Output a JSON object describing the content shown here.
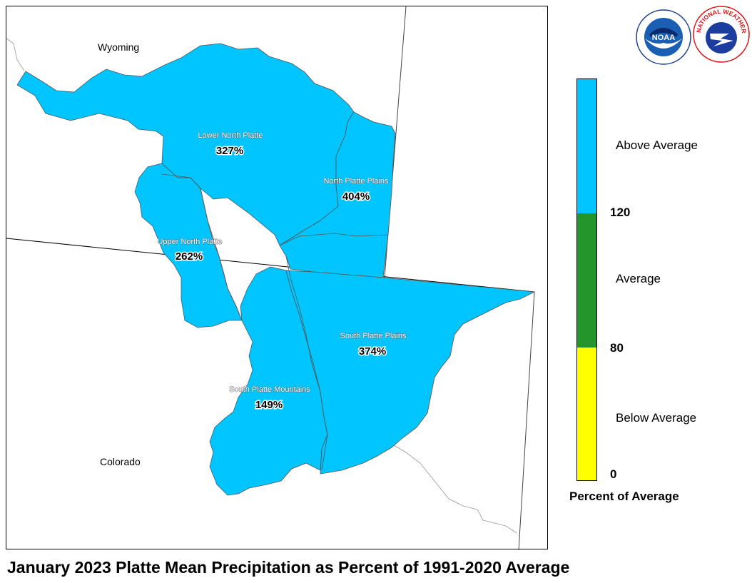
{
  "title": "January 2023 Platte Mean Precipitation as Percent of 1991-2020 Average",
  "map": {
    "states": [
      {
        "name": "Wyoming"
      },
      {
        "name": "Colorado"
      }
    ],
    "basins": [
      {
        "name": "Lower North Platte",
        "value": "327%",
        "category": "Above Average"
      },
      {
        "name": "North Platte Plains",
        "value": "404%",
        "category": "Above Average"
      },
      {
        "name": "Upper North Platte",
        "value": "262%",
        "category": "Above Average"
      },
      {
        "name": "South Platte Plains",
        "value": "374%",
        "category": "Above Average"
      },
      {
        "name": "South Platte Mountains",
        "value": "149%",
        "category": "Above Average"
      }
    ]
  },
  "legend": {
    "title": "Percent of Average",
    "categories": [
      {
        "label": "Above Average",
        "color": "#00c5ff"
      },
      {
        "label": "Average",
        "color": "#24952a"
      },
      {
        "label": "Below Average",
        "color": "#ffff00"
      }
    ],
    "ticks": [
      "120",
      "80",
      "0"
    ]
  },
  "logos": [
    {
      "name": "NOAA",
      "text": "NOAA"
    },
    {
      "name": "National Weather Service",
      "text": "NATIONAL WEATHER SERVICE"
    }
  ],
  "colors": {
    "basin_fill": "#00c5ff",
    "basin_border": "#555555"
  }
}
